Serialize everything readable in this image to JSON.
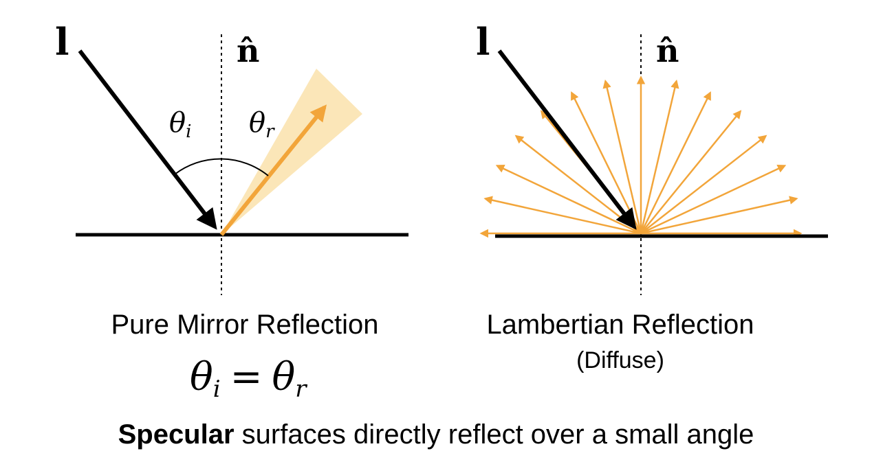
{
  "left_panel": {
    "light_label": "l",
    "normal_label": "n̂",
    "theta_i": {
      "symbol": "θ",
      "sub": "i"
    },
    "theta_r": {
      "symbol": "θ",
      "sub": "r"
    },
    "caption": "Pure Mirror Reflection",
    "equation": {
      "lhs_symbol": "θ",
      "lhs_sub": "i",
      "op": "=",
      "rhs_symbol": "θ",
      "rhs_sub": "r"
    }
  },
  "right_panel": {
    "light_label": "l",
    "normal_label": "n̂",
    "caption_line1": "Lambertian Reflection",
    "caption_line2": "(Diffuse)"
  },
  "footer": {
    "bold": "Specular",
    "rest": " surfaces directly reflect over a small angle"
  },
  "colors": {
    "ink": "#000000",
    "ray": "#F2A53A",
    "cone": "#FBE3B0"
  }
}
